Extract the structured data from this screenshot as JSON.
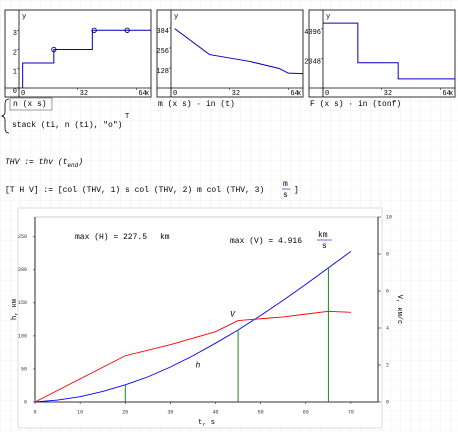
{
  "chart_data": [
    {
      "type": "line",
      "captions": [
        "n (x s)",
        "stack (ti, n (ti), \"o\")"
      ],
      "transpose": "T",
      "xlabel": "x",
      "ylabel": "y",
      "xlim": [
        0,
        72
      ],
      "ylim": [
        0,
        3.9
      ],
      "xticks": [
        0,
        32,
        64
      ],
      "yticks": [
        0,
        1,
        2,
        3
      ],
      "series": [
        {
          "color": "#0000c0",
          "x": [
            2,
            2,
            19,
            19,
            40,
            40,
            72
          ],
          "values": [
            0,
            1.3,
            1.3,
            2,
            2,
            3,
            3
          ]
        },
        {
          "color": "#000080",
          "marker": "circle",
          "x": [
            19,
            41,
            59
          ],
          "values": [
            2,
            3,
            3
          ]
        }
      ]
    },
    {
      "type": "line",
      "captions": [
        "m (x s) · in (t)"
      ],
      "xlabel": "x",
      "ylabel": "y",
      "xlim": [
        0,
        72
      ],
      "ylim": [
        0,
        480
      ],
      "xticks": [
        0,
        32,
        64
      ],
      "yticks": [
        128,
        256,
        384
      ],
      "series": [
        {
          "color": "#0000c0",
          "x": [
            2,
            21,
            43,
            59,
            64,
            72
          ],
          "values": [
            380,
            214,
            170,
            125,
            95,
            92
          ]
        }
      ]
    },
    {
      "type": "line",
      "captions": [
        "F (x s) · in (tonf)"
      ],
      "xlabel": "x",
      "ylabel": "y",
      "xlim": [
        0,
        72
      ],
      "ylim": [
        0,
        5200
      ],
      "xticks": [
        0,
        32,
        64
      ],
      "yticks": [
        2048,
        4096
      ],
      "series": [
        {
          "color": "#0000c0",
          "x": [
            0,
            19,
            19,
            41,
            41,
            72
          ],
          "values": [
            4500,
            4500,
            1750,
            1750,
            630,
            630
          ]
        }
      ]
    },
    {
      "type": "line",
      "xlabel": "t, s",
      "ylabel": "h, км",
      "y2label": "V, км/с",
      "xlim": [
        0,
        76
      ],
      "ylim": [
        0,
        280
      ],
      "y2lim": [
        0,
        10
      ],
      "xticks": [
        0,
        10,
        20,
        30,
        40,
        50,
        60,
        70
      ],
      "yticks": [
        0,
        50,
        100,
        150,
        200,
        250
      ],
      "y2ticks": [
        0,
        2,
        4,
        6,
        8,
        10
      ],
      "series": [
        {
          "name": "h",
          "color": "#0000ff",
          "x": [
            0,
            5,
            10,
            15,
            20,
            25,
            30,
            35,
            40,
            45,
            50,
            55,
            60,
            65,
            70
          ],
          "values": [
            0,
            3,
            8,
            16,
            26,
            38,
            53,
            70,
            89,
            109,
            131,
            154,
            178,
            203,
            228
          ]
        },
        {
          "name": "V",
          "color": "#ff0000",
          "axis": "y2",
          "x": [
            0,
            20,
            30,
            40,
            45,
            50,
            55,
            60,
            65,
            70
          ],
          "values": [
            0,
            2.5,
            3.1,
            3.8,
            4.4,
            4.5,
            4.6,
            4.75,
            4.9,
            4.85
          ]
        }
      ],
      "markers": {
        "color": "#008000",
        "x": [
          20,
          45,
          65
        ]
      },
      "annotations": [
        {
          "text": "max (H) = 227.5",
          "unit": "km"
        },
        {
          "text": "max (V) = 4.916",
          "unit_num": "km",
          "unit_den": "s"
        }
      ]
    }
  ],
  "worksheet": {
    "def1": "THV := thv",
    "def1_arg": "t",
    "def1_sub": "end",
    "def2": "[T H V] := [col (THV, 1) s col (THV, 2) m col (THV, 3)",
    "unit_num": "m",
    "unit_den": "s",
    "def2_close": "]"
  }
}
